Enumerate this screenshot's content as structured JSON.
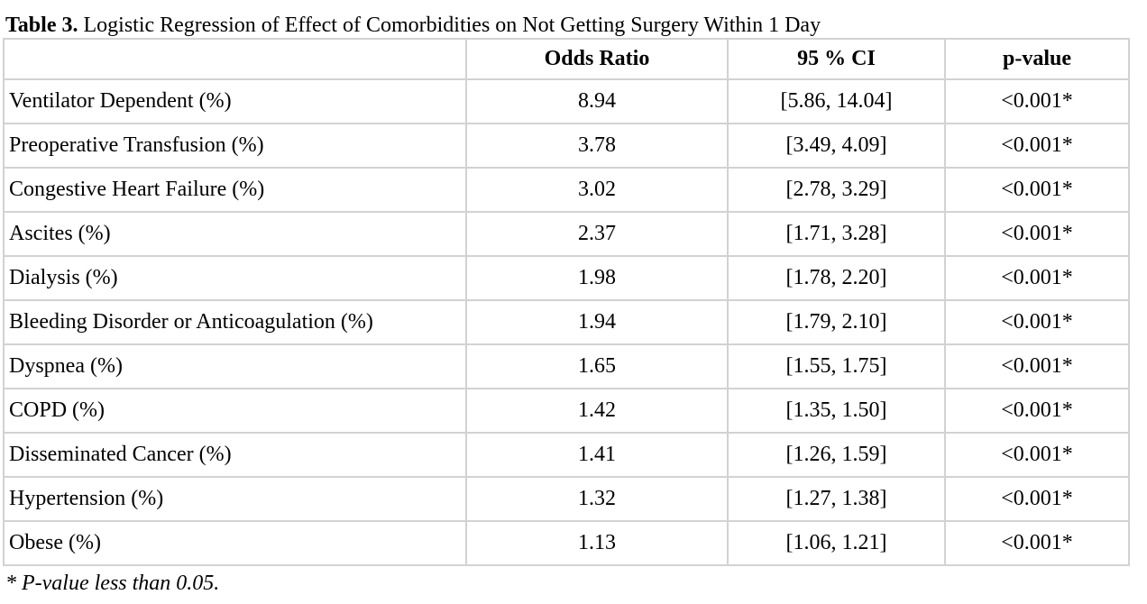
{
  "caption": {
    "label": "Table 3.",
    "text": " Logistic Regression of Effect of Comorbidities on Not Getting Surgery Within 1 Day"
  },
  "table": {
    "headers": [
      "",
      "Odds Ratio",
      "95 % CI",
      "p-value"
    ],
    "rows": [
      {
        "name": "Ventilator Dependent (%)",
        "odds_ratio": "8.94",
        "ci": "[5.86, 14.04]",
        "p_value": "<0.001*"
      },
      {
        "name": "Preoperative Transfusion (%)",
        "odds_ratio": "3.78",
        "ci": "[3.49, 4.09]",
        "p_value": "<0.001*"
      },
      {
        "name": "Congestive Heart Failure (%)",
        "odds_ratio": "3.02",
        "ci": "[2.78, 3.29]",
        "p_value": "<0.001*"
      },
      {
        "name": "Ascites (%)",
        "odds_ratio": "2.37",
        "ci": "[1.71, 3.28]",
        "p_value": "<0.001*"
      },
      {
        "name": "Dialysis (%)",
        "odds_ratio": "1.98",
        "ci": "[1.78, 2.20]",
        "p_value": "<0.001*"
      },
      {
        "name": "Bleeding Disorder or Anticoagulation (%)",
        "odds_ratio": "1.94",
        "ci": "[1.79, 2.10]",
        "p_value": "<0.001*"
      },
      {
        "name": "Dyspnea (%)",
        "odds_ratio": "1.65",
        "ci": "[1.55, 1.75]",
        "p_value": "<0.001*"
      },
      {
        "name": "COPD (%)",
        "odds_ratio": "1.42",
        "ci": "[1.35, 1.50]",
        "p_value": "<0.001*"
      },
      {
        "name": "Disseminated Cancer (%)",
        "odds_ratio": "1.41",
        "ci": "[1.26, 1.59]",
        "p_value": "<0.001*"
      },
      {
        "name": "Hypertension (%)",
        "odds_ratio": "1.32",
        "ci": "[1.27, 1.38]",
        "p_value": "<0.001*"
      },
      {
        "name": "Obese (%)",
        "odds_ratio": "1.13",
        "ci": "[1.06, 1.21]",
        "p_value": "<0.001*"
      }
    ]
  },
  "footnote": "* P-value less than 0.05.",
  "colors": {
    "border": "#d2d2d2",
    "text": "#000000",
    "background": "#ffffff"
  }
}
